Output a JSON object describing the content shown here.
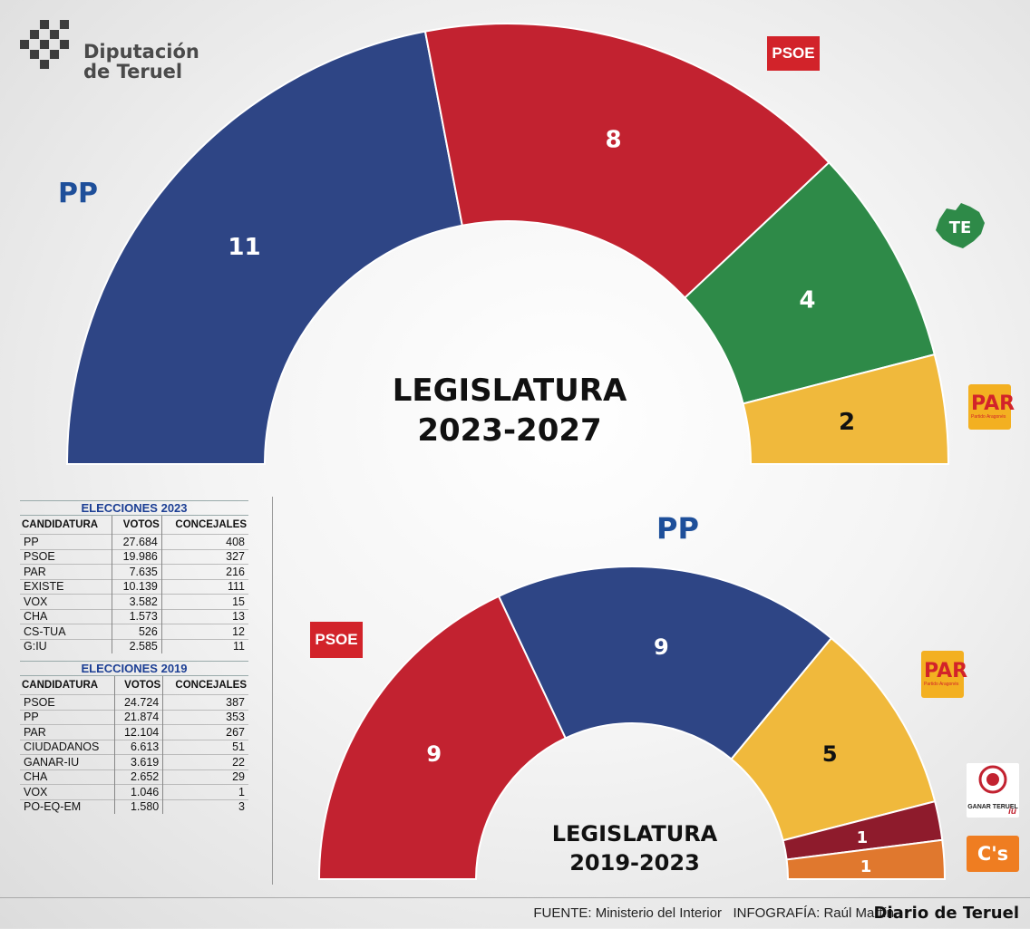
{
  "header": {
    "org_line1": "Diputación",
    "org_line2": "de Teruel"
  },
  "chart_data": [
    {
      "type": "pie",
      "title": "LEGISLATURA 2023-2027",
      "title_line1": "LEGISLATURA",
      "title_line2": "2023-2027",
      "categories": [
        "PP",
        "PSOE",
        "EXISTE",
        "PAR"
      ],
      "values": [
        11,
        8,
        4,
        2
      ],
      "colors": [
        "#2e4585",
        "#c22230",
        "#2e8a48",
        "#f0b93c"
      ]
    },
    {
      "type": "pie",
      "title": "LEGISLATURA 2019-2023",
      "title_line1": "LEGISLATURA",
      "title_line2": "2019-2023",
      "categories": [
        "PSOE",
        "PP",
        "PAR",
        "GANAR-IU",
        "CIUDADANOS"
      ],
      "values": [
        9,
        9,
        5,
        1,
        1
      ],
      "colors": [
        "#c22230",
        "#2e4585",
        "#f0b93c",
        "#8e1b2c",
        "#e0782e"
      ]
    }
  ],
  "logos": {
    "pp": "PP",
    "psoe": "PSOE",
    "te": "TE",
    "par": "PAR",
    "par_sub": "Partido Aragonés",
    "ganar": "GANAR TERUEL",
    "iu": "iu",
    "cs": "C's"
  },
  "tables": [
    {
      "title": "ELECCIONES 2023",
      "columns": [
        "CANDIDATURA",
        "VOTOS",
        "CONCEJALES"
      ],
      "rows": [
        [
          "PP",
          "27.684",
          "408"
        ],
        [
          "PSOE",
          "19.986",
          "327"
        ],
        [
          "PAR",
          "7.635",
          "216"
        ],
        [
          "EXISTE",
          "10.139",
          "111"
        ],
        [
          "VOX",
          "3.582",
          "15"
        ],
        [
          "CHA",
          "1.573",
          "13"
        ],
        [
          "CS-TUA",
          "526",
          "12"
        ],
        [
          "G:IU",
          "2.585",
          "11"
        ]
      ]
    },
    {
      "title": "ELECCIONES 2019",
      "columns": [
        "CANDIDATURA",
        "VOTOS",
        "CONCEJALES"
      ],
      "rows": [
        [
          "PSOE",
          "24.724",
          "387"
        ],
        [
          "PP",
          "21.874",
          "353"
        ],
        [
          "PAR",
          "12.104",
          "267"
        ],
        [
          "CIUDADANOS",
          "6.613",
          "51"
        ],
        [
          "GANAR-IU",
          "3.619",
          "22"
        ],
        [
          "CHA",
          "2.652",
          "29"
        ],
        [
          "VOX",
          "1.046",
          "1"
        ],
        [
          "PO-EQ-EM",
          "1.580",
          "3"
        ]
      ]
    }
  ],
  "footer": {
    "fuente_label": "FUENTE:",
    "fuente_value": "Ministerio del Interior",
    "infografia_label": "INFOGRAFÍA:",
    "infografia_value": "Raúl Martín",
    "brand": "Diario de Teruel"
  }
}
